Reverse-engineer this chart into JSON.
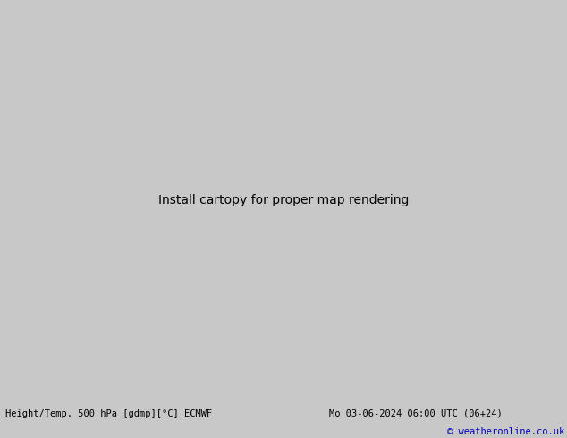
{
  "title_left": "Height/Temp. 500 hPa [gdmp][°C] ECMWF",
  "title_right": "Mo 03-06-2024 06:00 UTC (06+24)",
  "copyright": "© weatheronline.co.uk",
  "fig_width": 6.34,
  "fig_height": 4.9,
  "dpi": 100,
  "bg_color": "#c8c8c8",
  "bottom_color": "#d8d8d8",
  "land_green": [
    0.7,
    0.9,
    0.68
  ],
  "land_gray": [
    0.76,
    0.76,
    0.76
  ],
  "ocean_color": [
    0.8,
    0.8,
    0.8
  ],
  "black_lw": 1.4,
  "thick_black_lw": 2.2,
  "temp_cyan": "#00cccc",
  "temp_green": "#99cc00",
  "temp_orange": "#ff8800",
  "temp_red": "#ee0000",
  "label_fs": 7.5,
  "clabel_fs": 6.5,
  "copyright_color": "#0000bb"
}
